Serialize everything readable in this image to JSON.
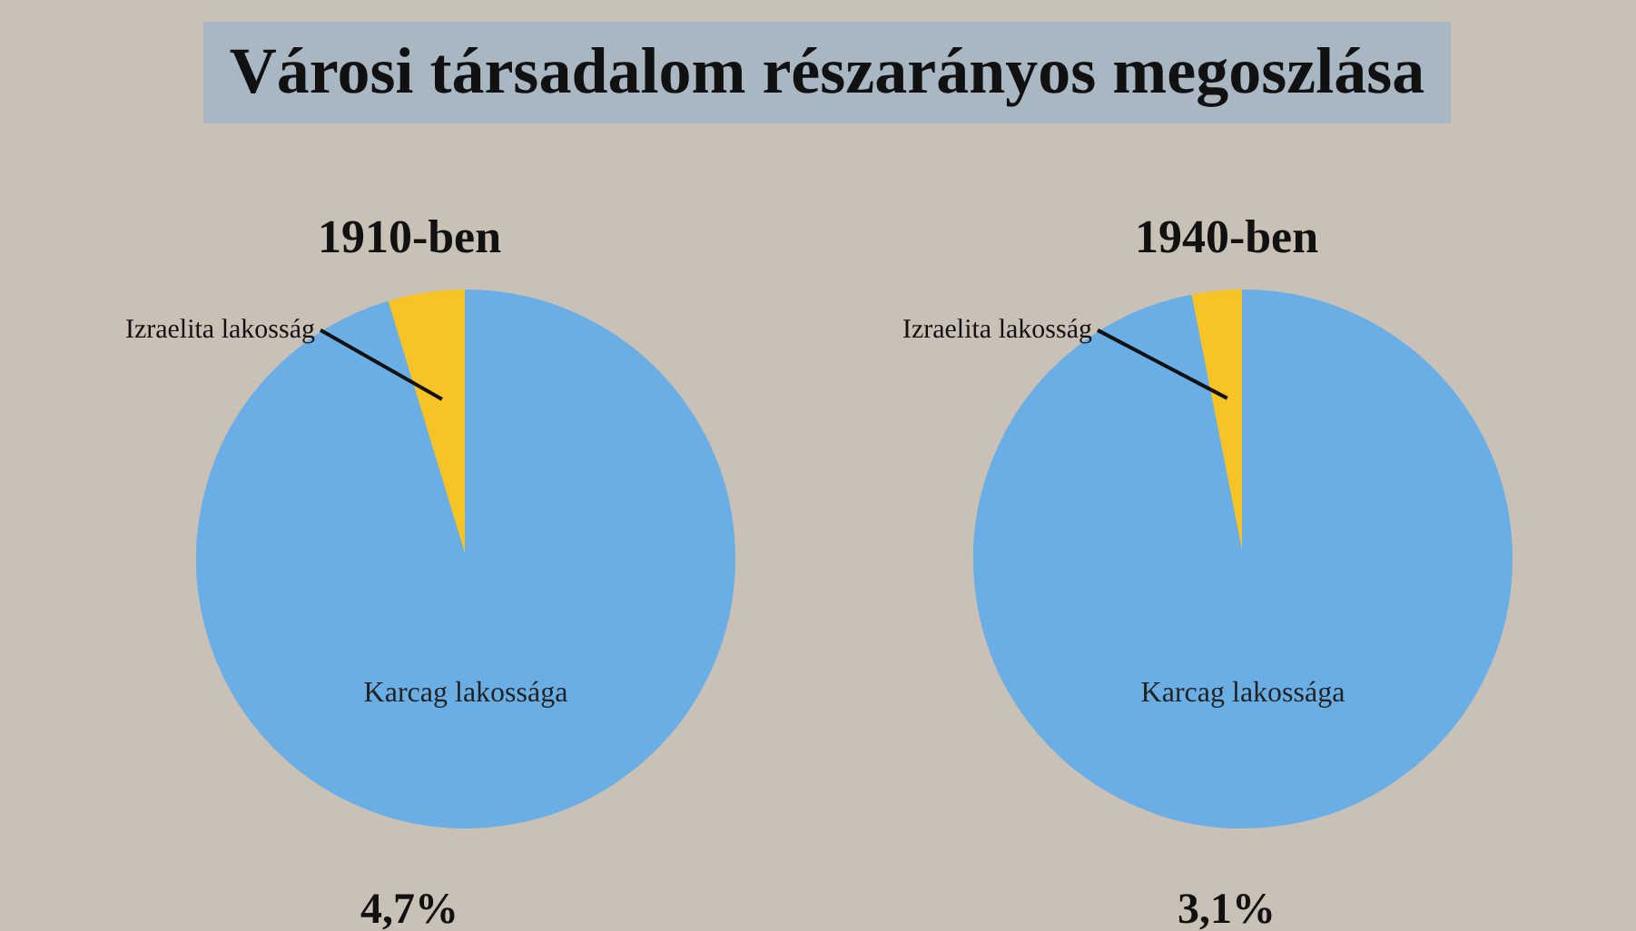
{
  "chart_data": [
    {
      "type": "pie",
      "title": "Városi társadalom részarányos megoszlása",
      "subtitle": "1910-ben",
      "categories": [
        "Izraelita lakosság",
        "Karcag lakossága"
      ],
      "values": [
        4.7,
        95.3
      ],
      "colors": [
        "#f7c325",
        "#6aaee6"
      ],
      "annotations": [
        "4,7%"
      ]
    },
    {
      "type": "pie",
      "title": "1940-ben",
      "categories": [
        "Izraelita lakosság",
        "Karcag lakossága"
      ],
      "values": [
        3.1,
        96.9
      ],
      "colors": [
        "#f7c325",
        "#6aaee6"
      ],
      "annotations": [
        "3,1%"
      ]
    }
  ]
}
